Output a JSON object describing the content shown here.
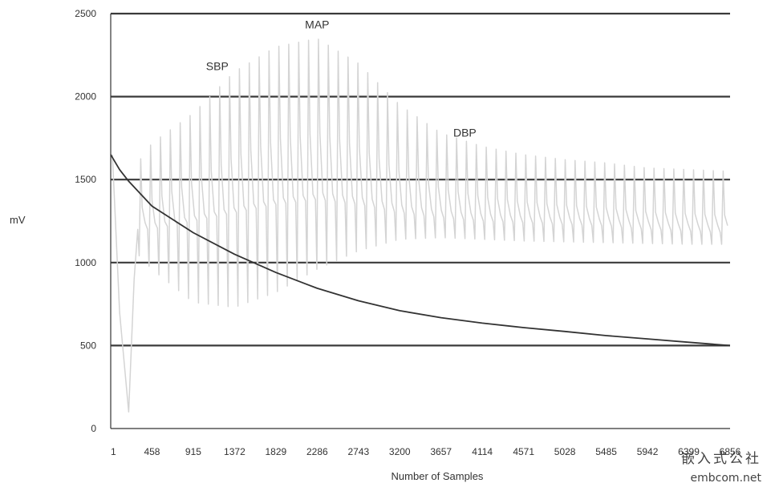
{
  "chart_data": {
    "type": "line",
    "title": "",
    "xlabel": "Number of Samples",
    "ylabel": "mV",
    "ylim": [
      0,
      2500
    ],
    "xlim": [
      1,
      6856
    ],
    "y_ticks": [
      "0",
      "500",
      "1000",
      "1500",
      "2000",
      "2500"
    ],
    "x_ticks": [
      "1",
      "458",
      "915",
      "1372",
      "1829",
      "2286",
      "2743",
      "3200",
      "3657",
      "4114",
      "4571",
      "5028",
      "5485",
      "5942",
      "6399",
      "6856"
    ],
    "x_tick_values": [
      1,
      458,
      915,
      1372,
      1829,
      2286,
      2743,
      3200,
      3657,
      4114,
      4571,
      5028,
      5485,
      5942,
      6399,
      6856
    ],
    "grid": true,
    "series": [
      {
        "role": "cuff pressure",
        "color": "#333333",
        "points": [
          [
            1,
            1650
          ],
          [
            100,
            1560
          ],
          [
            200,
            1490
          ],
          [
            458,
            1340
          ],
          [
            915,
            1180
          ],
          [
            1372,
            1050
          ],
          [
            1829,
            940
          ],
          [
            2286,
            845
          ],
          [
            2743,
            770
          ],
          [
            3200,
            710
          ],
          [
            3657,
            668
          ],
          [
            4114,
            635
          ],
          [
            4571,
            608
          ],
          [
            5028,
            585
          ],
          [
            5485,
            560
          ],
          [
            5942,
            540
          ],
          [
            6399,
            520
          ],
          [
            6856,
            500
          ]
        ]
      },
      {
        "role": "pulse oscillations",
        "color": "#d4d4d4",
        "envelope": {
          "peak_x": [
            1,
            300,
            458,
            915,
            1372,
            1829,
            2286,
            2743,
            3200,
            3657,
            4114,
            4571,
            5028,
            5485,
            5942,
            6399,
            6856
          ],
          "upper": [
            1700,
            1600,
            1720,
            1900,
            2150,
            2300,
            2350,
            2200,
            1950,
            1780,
            1700,
            1650,
            1620,
            1600,
            1570,
            1560,
            1550
          ],
          "lower": [
            950,
            1050,
            960,
            760,
            730,
            820,
            960,
            1070,
            1140,
            1150,
            1140,
            1130,
            1125,
            1120,
            1115,
            1110,
            1110
          ],
          "baseline": [
            1200,
            1200,
            1200,
            1250,
            1300,
            1350,
            1380,
            1350,
            1300,
            1270,
            1250,
            1240,
            1230,
            1220,
            1200,
            1190,
            1180
          ],
          "pulses": 60,
          "initial_dip": [
            [
              20,
              1650
            ],
            [
              100,
              700
            ],
            [
              200,
              100
            ],
            [
              260,
              900
            ]
          ]
        }
      }
    ],
    "annotations": [
      {
        "text": "MAP",
        "x": 2286,
        "y": 2410
      },
      {
        "text": "SBP",
        "x": 1180,
        "y": 2160
      },
      {
        "text": "DBP",
        "x": 3920,
        "y": 1760
      }
    ]
  },
  "watermark": {
    "line1": "嵌入式公社",
    "line2": "embcom.net"
  }
}
